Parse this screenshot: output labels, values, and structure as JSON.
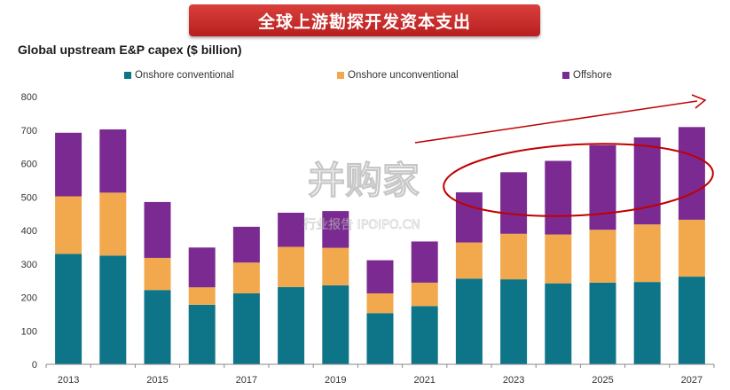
{
  "banner": {
    "title": "全球上游勘探开发资本支出"
  },
  "watermark": {
    "main": "并购家",
    "sub": "行业报告 IPOIPO.CN"
  },
  "colors": {
    "banner": "#c8302c",
    "onshore_conventional": "#0e7488",
    "onshore_unconventional": "#f2a94e",
    "offshore": "#7b2a92",
    "annotation": "#c00000"
  },
  "chart_data": {
    "type": "bar",
    "stacked": true,
    "title": "Global upstream E&P capex ($ billion)",
    "categories": [
      "2013",
      "2014",
      "2015",
      "2016",
      "2017",
      "2018",
      "2019",
      "2020",
      "2021",
      "2022",
      "2023",
      "2024",
      "2025",
      "2026",
      "2027"
    ],
    "x_tick_labels": [
      "2013",
      "",
      "2015",
      "",
      "2017",
      "",
      "2019",
      "",
      "2021",
      "",
      "2023",
      "",
      "2025",
      "",
      "2027"
    ],
    "series": [
      {
        "name": "Onshore conventional",
        "color": "#0e7488",
        "values": [
          330,
          325,
          222,
          178,
          212,
          231,
          236,
          153,
          174,
          256,
          254,
          242,
          244,
          246,
          262
        ]
      },
      {
        "name": "Onshore unconventional",
        "color": "#f2a94e",
        "values": [
          172,
          188,
          96,
          52,
          92,
          120,
          112,
          59,
          70,
          108,
          136,
          146,
          158,
          172,
          170
        ]
      },
      {
        "name": "Offshore",
        "color": "#7b2a92",
        "values": [
          190,
          189,
          167,
          119,
          107,
          102,
          110,
          99,
          123,
          150,
          184,
          220,
          253,
          260,
          277
        ]
      }
    ],
    "ylim": [
      0,
      800
    ],
    "yticks": [
      0,
      100,
      200,
      300,
      400,
      500,
      600,
      700,
      800
    ],
    "grid": false,
    "legend_position": "top"
  }
}
